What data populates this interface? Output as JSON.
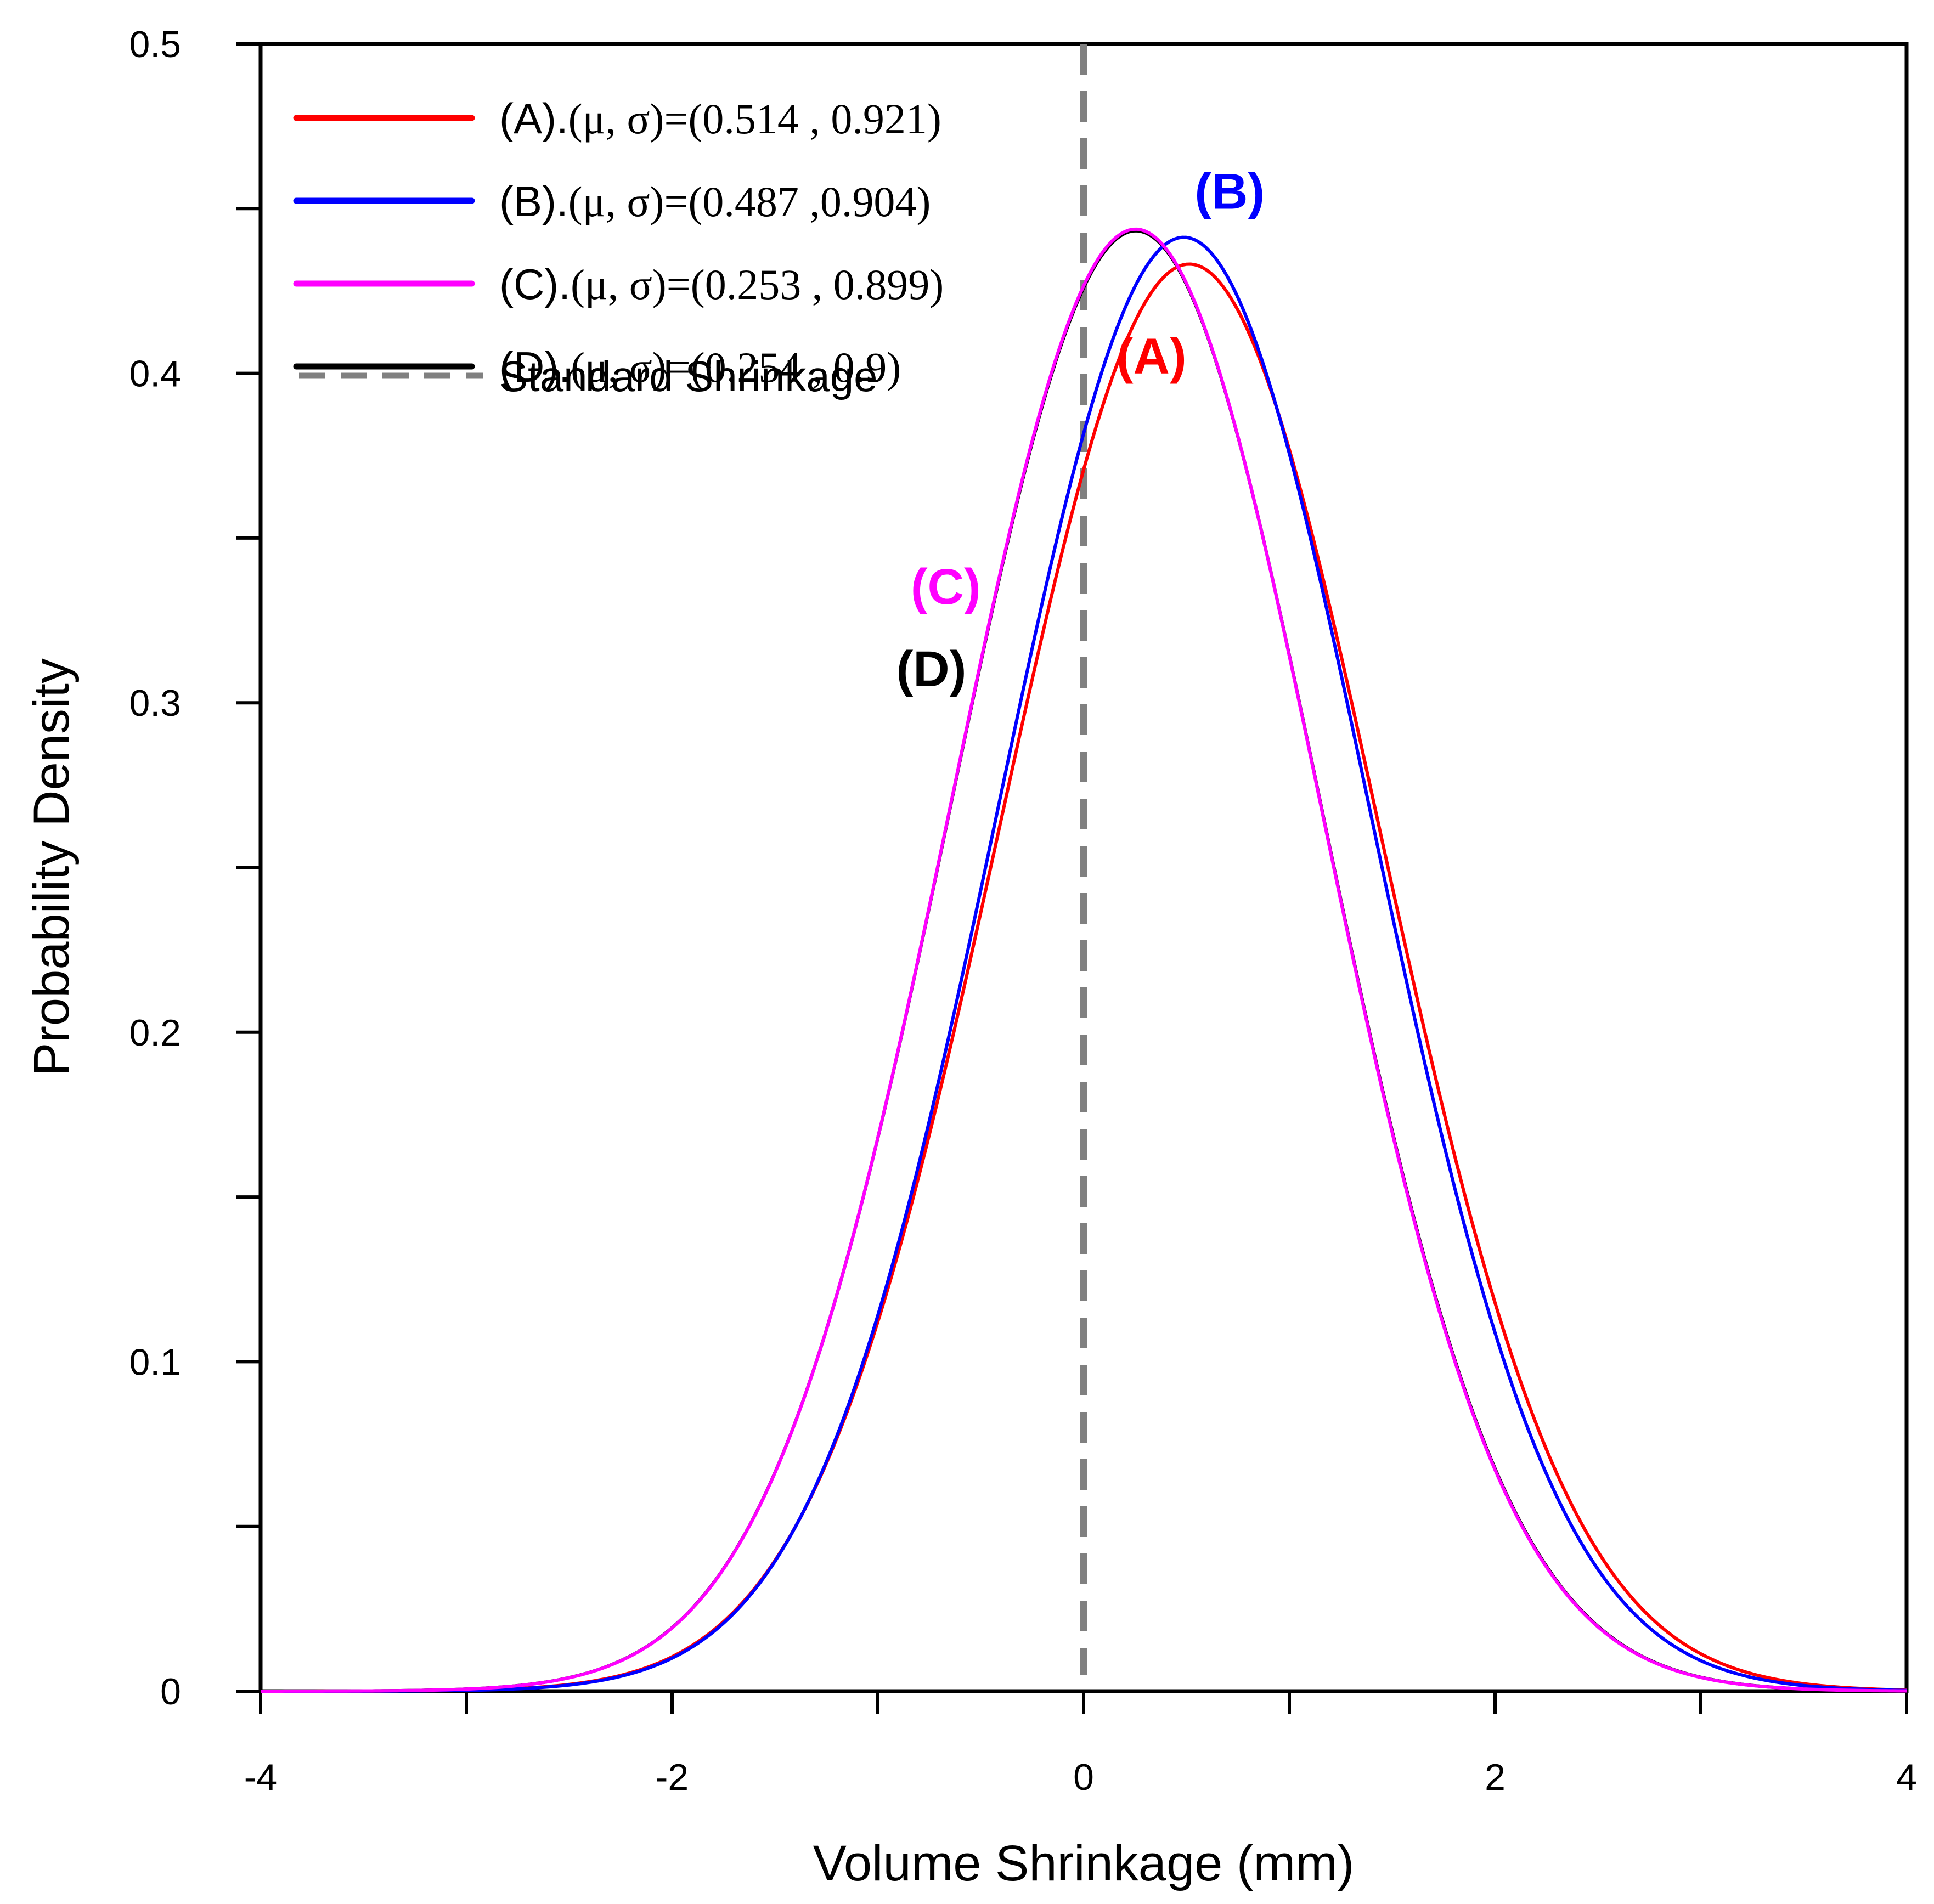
{
  "chart_data": {
    "type": "line",
    "title": "",
    "xlabel": "Volume Shrinkage (mm)",
    "ylabel": "Probability Density",
    "xlim": [
      -4,
      4
    ],
    "ylim": [
      0,
      0.5
    ],
    "grid": false,
    "legend_position": "top-left",
    "x_major_ticks": [
      -4,
      -2,
      0,
      2,
      4
    ],
    "x_minor_ticks": [
      -3,
      -1,
      1,
      3
    ],
    "x_tick_labels": [
      "-4",
      "-2",
      "0",
      "2",
      "4"
    ],
    "y_major_ticks": [
      0,
      0.1,
      0.2,
      0.3,
      0.4,
      0.5
    ],
    "y_minor_ticks": [
      0.05,
      0.15,
      0.25,
      0.35,
      0.45
    ],
    "y_tick_labels": [
      "0",
      "0.1",
      "0.2",
      "0.3",
      "0.4",
      "0.5"
    ],
    "series": [
      {
        "name": "(A)",
        "legend_label": "(A).",
        "legend_params": "(μ, σ)=(0.514 , 0.921)",
        "mu": 0.514,
        "sigma": 0.921,
        "color": "#ff0000",
        "curve_label": "(A)",
        "label_at": [
          0.33,
          0.4
        ]
      },
      {
        "name": "(B)",
        "legend_label": "(B).",
        "legend_params": "(μ, σ)=(0.487 ,0.904)",
        "mu": 0.487,
        "sigma": 0.904,
        "color": "#0000ff",
        "curve_label": "(B)",
        "label_at": [
          0.71,
          0.45
        ]
      },
      {
        "name": "(C)",
        "legend_label": "(C).",
        "legend_params": "(μ, σ)=(0.253 , 0.899)",
        "mu": 0.253,
        "sigma": 0.899,
        "color": "#ff00ff",
        "curve_label": "(C)",
        "label_at": [
          -0.67,
          0.33
        ]
      },
      {
        "name": "(D)",
        "legend_label": "(D).",
        "legend_params": "(μ, σ)=(0.254 , 0.9)",
        "mu": 0.254,
        "sigma": 0.9,
        "color": "#000000",
        "curve_label": "(D)",
        "label_at": [
          -0.74,
          0.305
        ]
      }
    ],
    "reference_line": {
      "name": "Standard Shrinkage",
      "x": 0,
      "color": "#808080",
      "style": "dashed"
    }
  }
}
